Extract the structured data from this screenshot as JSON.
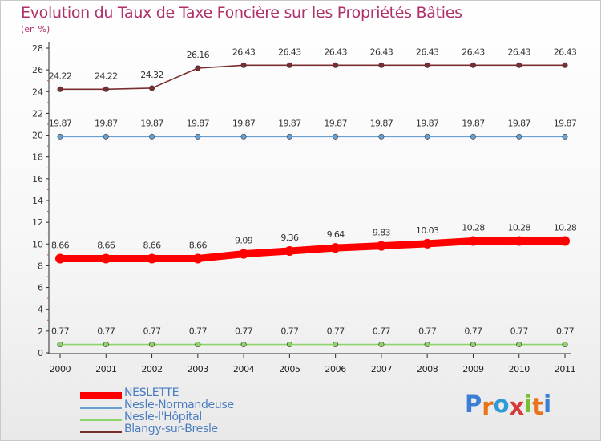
{
  "title": "Evolution du Taux de Taxe Foncière sur les Propriétés Bâties",
  "unit_label": "(en %)",
  "brand": {
    "text": "Proxiti",
    "letter_colors": [
      "#3a7fd5",
      "#e8731a",
      "#2e9bd6",
      "#d63a3a",
      "#7cbf2e",
      "#e8731a",
      "#3a7fd5"
    ]
  },
  "chart_data": {
    "type": "line",
    "title": "Evolution du Taux de Taxe Foncière sur les Propriétés Bâties",
    "ylabel": "(en %)",
    "xlabel": "",
    "ylim": [
      0,
      28
    ],
    "yticks": [
      0,
      2,
      4,
      6,
      8,
      10,
      12,
      14,
      16,
      18,
      20,
      22,
      24,
      26,
      28
    ],
    "grid": false,
    "legend_position": "bottom-left",
    "categories": [
      "2000",
      "2001",
      "2002",
      "2003",
      "2004",
      "2005",
      "2006",
      "2007",
      "2008",
      "2009",
      "2010",
      "2011"
    ],
    "series": [
      {
        "name": "NESLETTE",
        "color": "#ff0000",
        "emphasis": true,
        "values": [
          8.66,
          8.66,
          8.66,
          8.66,
          9.09,
          9.36,
          9.64,
          9.83,
          10.03,
          10.28,
          10.28,
          10.28
        ],
        "labels": [
          "8.66",
          "8.66",
          "8.66",
          "8.66",
          "9.09",
          "9.36",
          "9.64",
          "9.83",
          "10.03",
          "10.28",
          "10.28",
          "10.28"
        ]
      },
      {
        "name": "Nesle-Normandeuse",
        "color": "#6a9fd4",
        "emphasis": false,
        "values": [
          19.87,
          19.87,
          19.87,
          19.87,
          19.87,
          19.87,
          19.87,
          19.87,
          19.87,
          19.87,
          19.87,
          19.87
        ],
        "labels": [
          "19.87",
          "19.87",
          "19.87",
          "19.87",
          "19.87",
          "19.87",
          "19.87",
          "19.87",
          "19.87",
          "19.87",
          "19.87",
          "19.87"
        ]
      },
      {
        "name": "Nesle-l'Hôpital",
        "color": "#8fd36b",
        "emphasis": false,
        "values": [
          0.77,
          0.77,
          0.77,
          0.77,
          0.77,
          0.77,
          0.77,
          0.77,
          0.77,
          0.77,
          0.77,
          0.77
        ],
        "labels": [
          "0.77",
          "0.77",
          "0.77",
          "0.77",
          "0.77",
          "0.77",
          "0.77",
          "0.77",
          "0.77",
          "0.77",
          "0.77",
          "0.77"
        ]
      },
      {
        "name": "Blangy-sur-Bresle",
        "color": "#7a2e2e",
        "emphasis": false,
        "values": [
          24.22,
          24.22,
          24.32,
          26.16,
          26.43,
          26.43,
          26.43,
          26.43,
          26.43,
          26.43,
          26.43,
          26.43
        ],
        "labels": [
          "24.22",
          "24.22",
          "24.32",
          "26.16",
          "26.43",
          "26.43",
          "26.43",
          "26.43",
          "26.43",
          "26.43",
          "26.43",
          "26.43"
        ]
      }
    ],
    "series_draw_order": [
      2,
      1,
      3,
      0
    ]
  }
}
